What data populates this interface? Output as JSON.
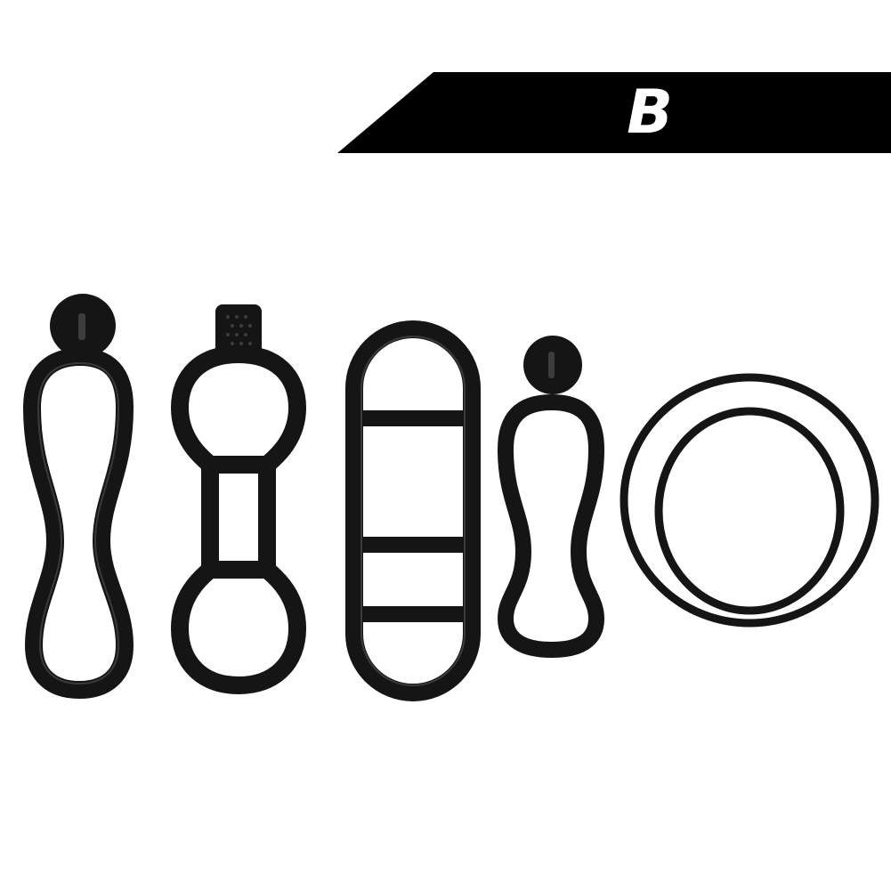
{
  "banner": {
    "label": "B",
    "background_color": "#000000",
    "text_color": "#ffffff"
  },
  "product": {
    "items": [
      {
        "name": "long-strap-with-tab-icon"
      },
      {
        "name": "dogbone-strap-icon"
      },
      {
        "name": "ladder-strap-icon"
      },
      {
        "name": "short-strap-with-tab-icon"
      },
      {
        "name": "o-rings-icon"
      }
    ],
    "rubber_color": "#151515"
  }
}
